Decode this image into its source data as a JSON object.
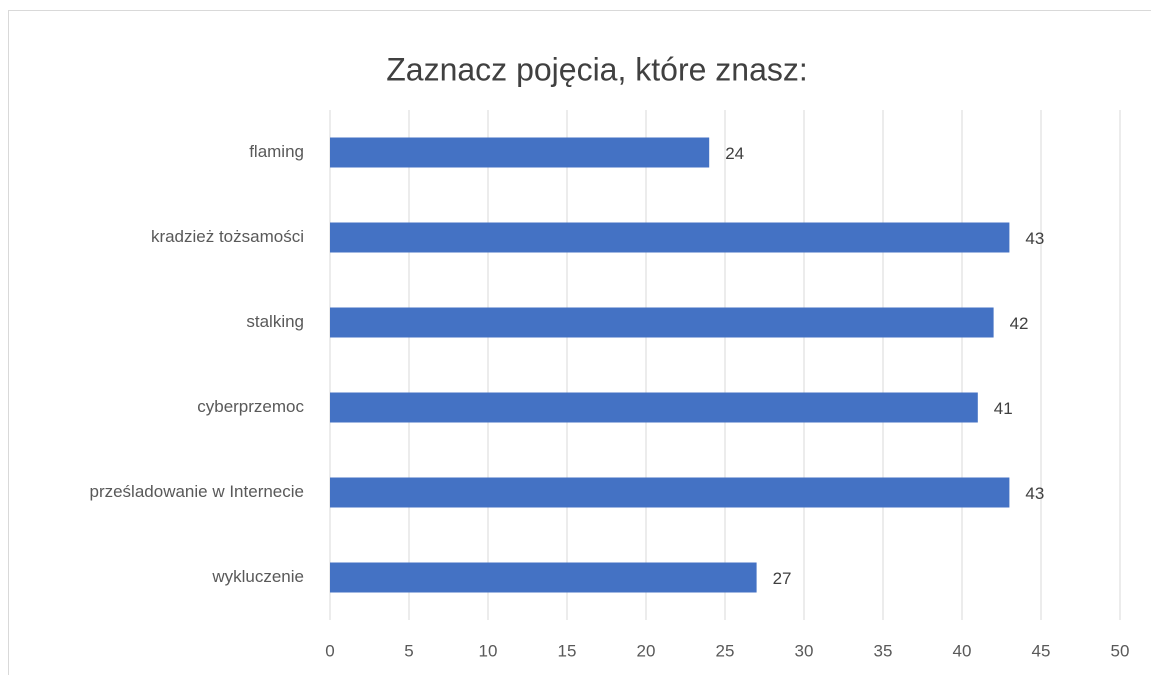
{
  "chart_data": {
    "type": "bar",
    "orientation": "horizontal",
    "title": "Zaznacz pojęcia, które znasz:",
    "categories": [
      "flaming",
      "kradzież tożsamości",
      "stalking",
      "cyberprzemoc",
      "prześladowanie w Internecie",
      "wykluczenie"
    ],
    "values": [
      24,
      43,
      42,
      41,
      43,
      27
    ],
    "color": "#4472c4",
    "xlim": [
      0,
      50
    ],
    "xticks": [
      0,
      5,
      10,
      15,
      20,
      25,
      30,
      35,
      40,
      45,
      50
    ],
    "grid": true
  }
}
